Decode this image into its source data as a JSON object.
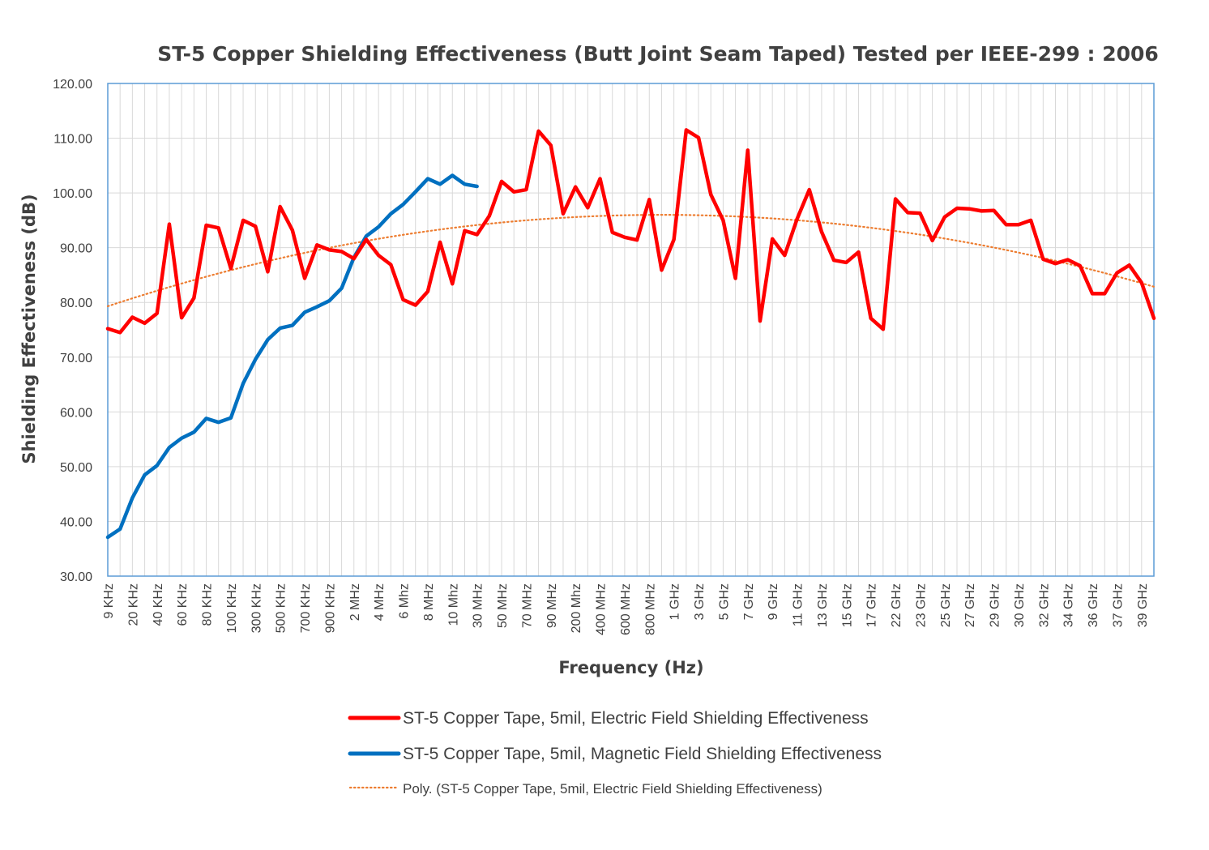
{
  "chart_data": {
    "type": "line",
    "title": "ST-5 Copper Shielding Effectiveness (Butt Joint Seam Taped) Tested per IEEE-299 : 2006",
    "xlabel": "Frequency (Hz)",
    "ylabel": "Shielding Effectiveness (dB)",
    "ylim": [
      30,
      120
    ],
    "ytick_step": 10,
    "ytick_labels": [
      "30.00",
      "40.00",
      "50.00",
      "60.00",
      "70.00",
      "80.00",
      "90.00",
      "100.00",
      "110.00",
      "120.00"
    ],
    "grid": true,
    "point_count": 86,
    "x_tick_labels": [
      "9 KHz",
      "20 KHz",
      "40 KHz",
      "60 KHz",
      "80 KHz",
      "100 KHz",
      "300 KHz",
      "500 KHz",
      "700 KHz",
      "900 KHz",
      "2 MHz",
      "4 MHz",
      "6 Mhz",
      "8 MHz",
      "10 Mhz",
      "30 MHz",
      "50 MHz",
      "70 MHz",
      "90 MHz",
      "200 Mhz",
      "400 MHz",
      "600 MHz",
      "800 MHz",
      "1 GHz",
      "3 GHz",
      "5 GHz",
      "7 GHz",
      "9 GHz",
      "11 GHz",
      "13 GHz",
      "15 GHz",
      "17 GHz",
      "22 GHz",
      "23 GHz",
      "25 GHz",
      "27 GHz",
      "29 GHz",
      "30 GHz",
      "32 GHz",
      "34 GHz",
      "36 GHz",
      "37 GHz",
      "39 GHz"
    ],
    "series": [
      {
        "name": "ST-5 Copper Tape, 5mil, Electric Field Shielding Effectiveness",
        "color": "#ff0000",
        "values": [
          75.2,
          74.5,
          77.3,
          76.2,
          78.0,
          94.3,
          77.2,
          80.8,
          94.1,
          93.6,
          86.2,
          95.0,
          93.9,
          85.6,
          97.5,
          93.2,
          84.4,
          90.5,
          89.6,
          89.3,
          88.0,
          91.5,
          88.6,
          86.9,
          80.5,
          79.5,
          82.0,
          91.0,
          83.4,
          93.1,
          92.4,
          95.8,
          102.1,
          100.2,
          100.6,
          111.3,
          108.7,
          96.2,
          101.1,
          97.3,
          102.6,
          92.8,
          91.9,
          91.4,
          98.8,
          85.9,
          91.5,
          111.5,
          110.1,
          99.7,
          95.0,
          84.4,
          107.8,
          76.6,
          91.6,
          88.6,
          95.2,
          100.6,
          92.9,
          87.7,
          87.3,
          89.2,
          77.1,
          75.1,
          98.9,
          96.4,
          96.3,
          91.3,
          95.6,
          97.2,
          97.1,
          96.7,
          96.8,
          94.2,
          94.2,
          95.0,
          87.9,
          87.1,
          87.8,
          86.7,
          81.6,
          81.6,
          85.4,
          86.8,
          83.6,
          77.1
        ]
      },
      {
        "name": "ST-5 Copper Tape, 5mil, Magnetic Field Shielding Effectiveness",
        "color": "#0070c0",
        "values": [
          37.1,
          38.6,
          44.3,
          48.5,
          50.2,
          53.5,
          55.2,
          56.3,
          58.8,
          58.1,
          58.9,
          65.2,
          69.6,
          73.2,
          75.3,
          75.8,
          78.2,
          79.2,
          80.3,
          82.6,
          88.2,
          92.1,
          93.8,
          96.2,
          97.9,
          100.2,
          102.6,
          101.6,
          103.2,
          101.6,
          101.2
        ]
      },
      {
        "name": "Poly. (ST-5 Copper Tape, 5mil, Electric Field Shielding Effectiveness)",
        "color": "#ed7d31",
        "style": "dotted",
        "trendline": {
          "from": 79.3,
          "peak": 96.0,
          "to": 82.9
        }
      }
    ],
    "legend_position": "bottom"
  }
}
